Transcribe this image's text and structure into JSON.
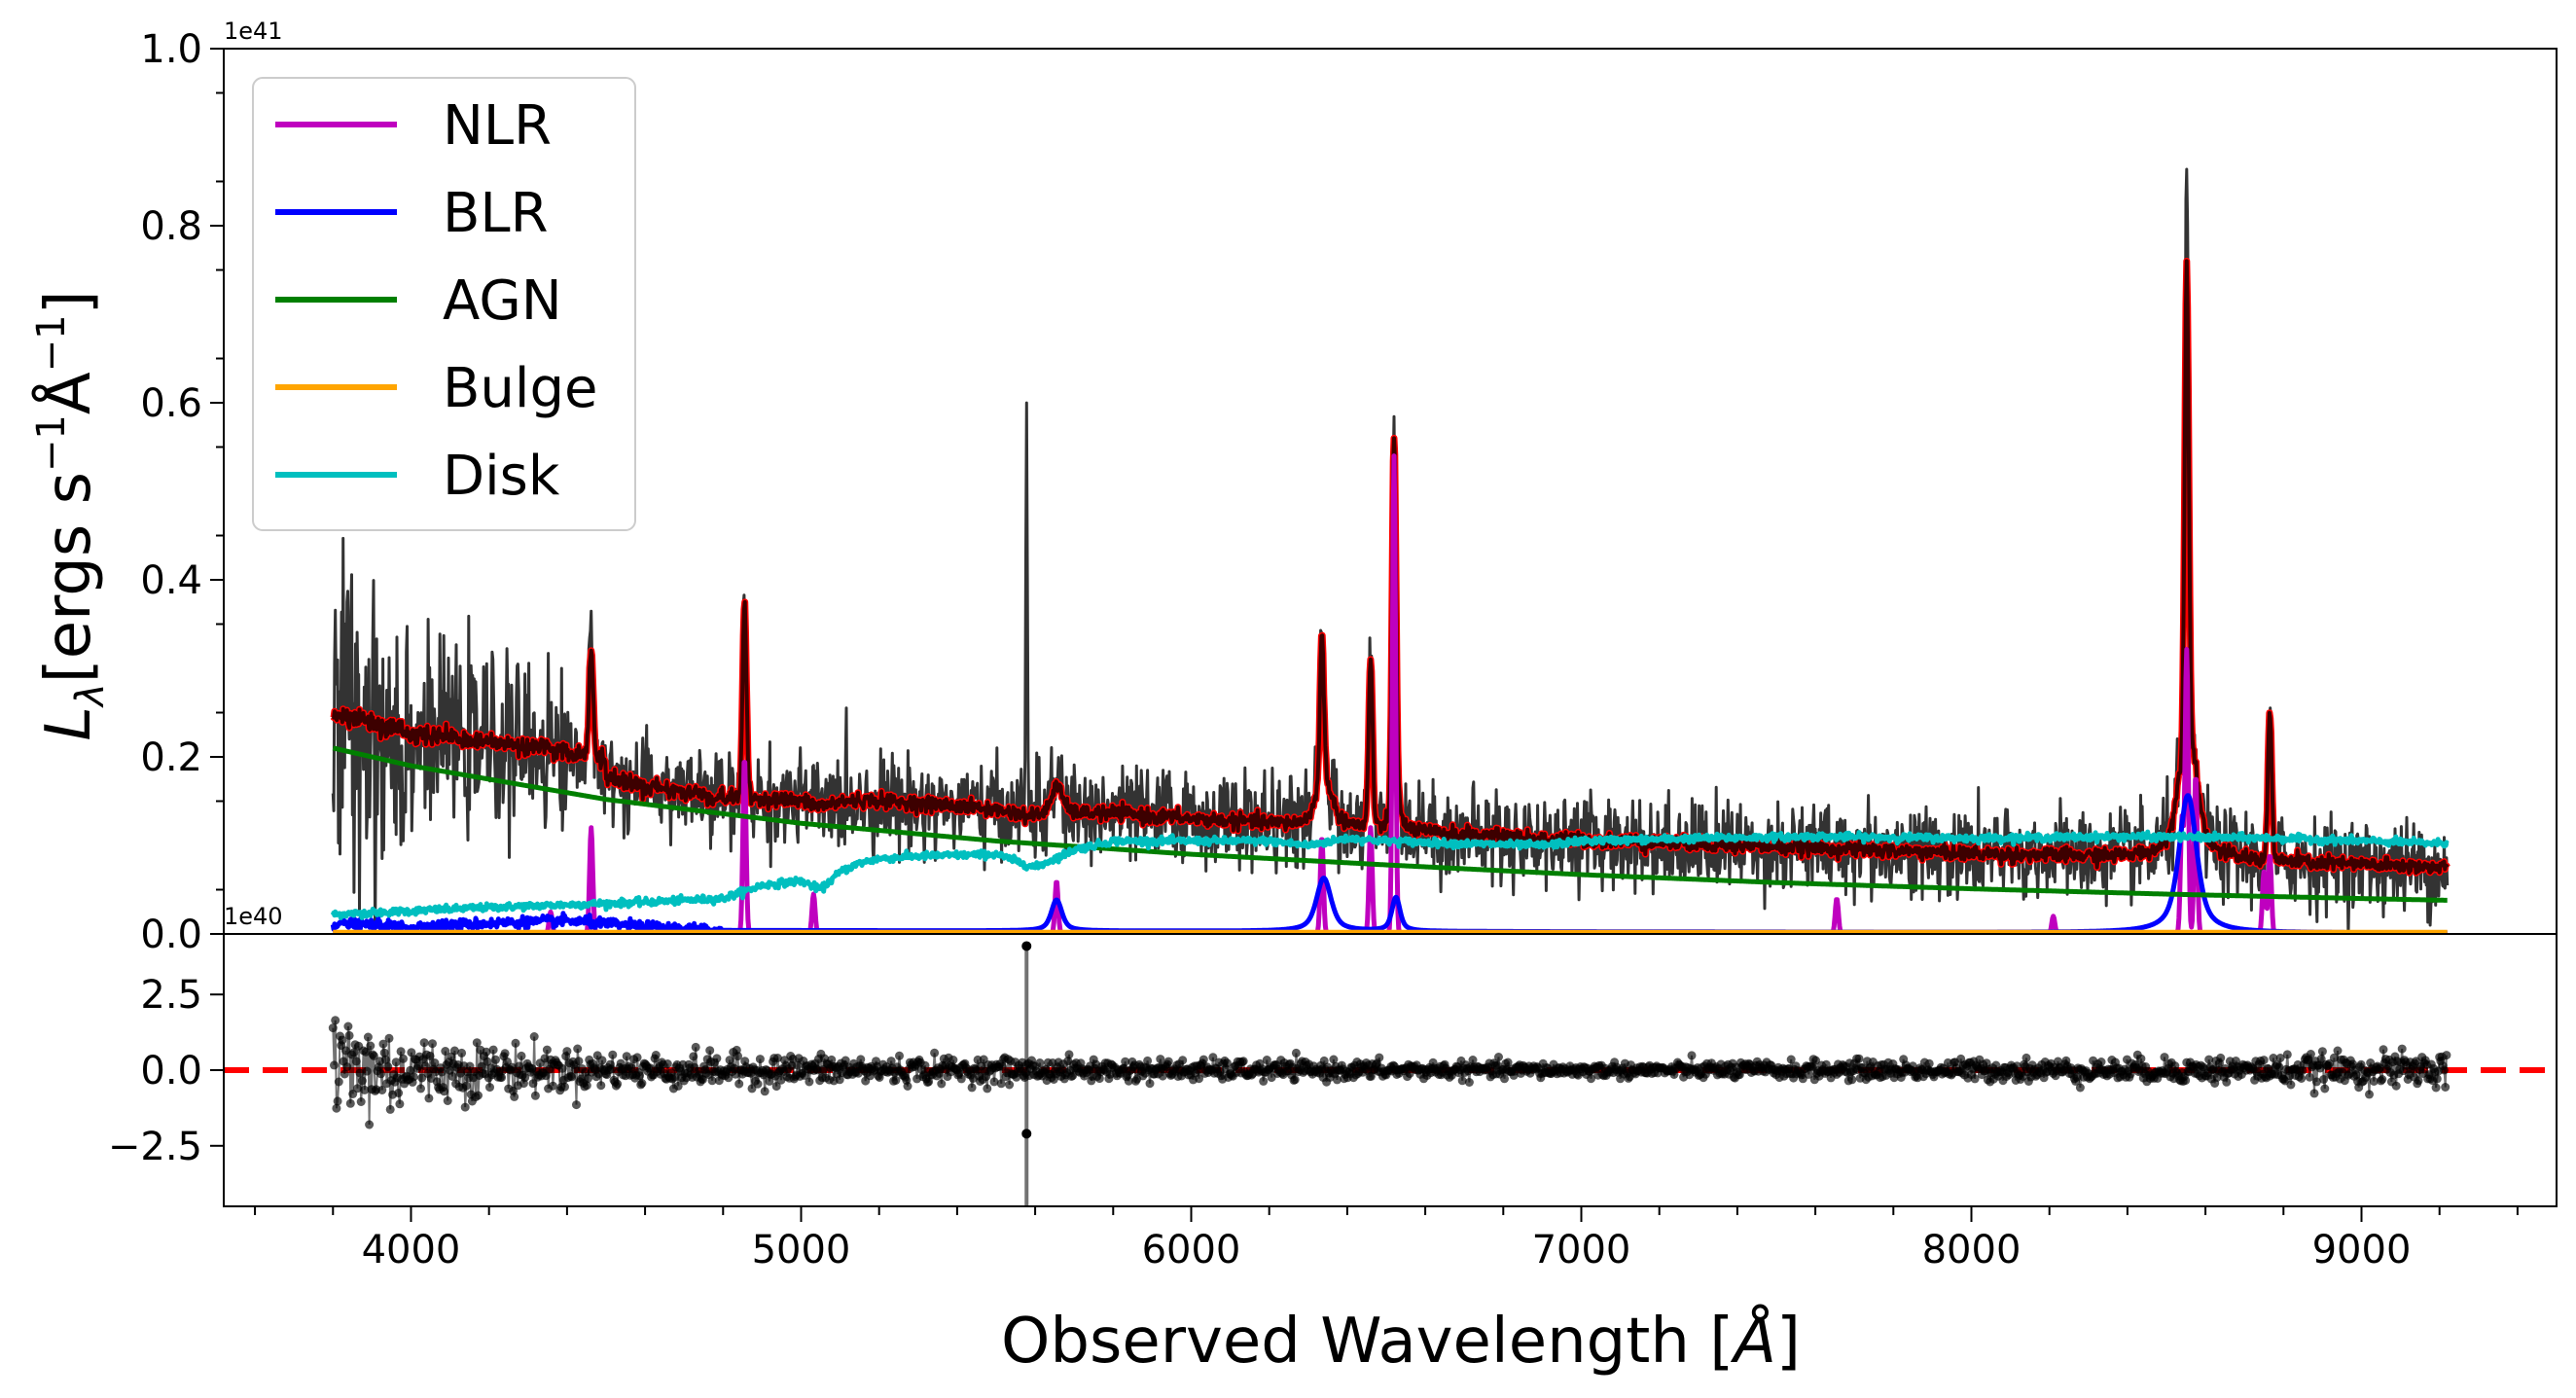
{
  "chart_data": [
    {
      "type": "line",
      "panel": "main",
      "ylabel": "L_λ[ergs s⁻¹Å⁻¹]",
      "ylabel_parts": [
        "L",
        "λ",
        "[ergs s",
        "−1",
        "Å",
        "−1",
        "]"
      ],
      "y_offset_label": "1e41",
      "ylim": [
        0,
        1.0
      ],
      "yticks": [
        0.0,
        0.2,
        0.4,
        0.6,
        0.8,
        1.0
      ],
      "ytick_labels": [
        "0.0",
        "0.2",
        "0.4",
        "0.6",
        "0.8",
        "1.0"
      ],
      "xlim": [
        3520,
        9500
      ],
      "legend": {
        "placement": "top-left",
        "entries": [
          {
            "name": "NLR",
            "color": "#bf00bf"
          },
          {
            "name": "BLR",
            "color": "#0000ff"
          },
          {
            "name": "AGN",
            "color": "#007f00"
          },
          {
            "name": "Bulge",
            "color": "#ffa500"
          },
          {
            "name": "Disk",
            "color": "#00bfbf"
          }
        ]
      },
      "colors": {
        "data": "#333333",
        "model": "#ff0000",
        "model_dark": "#3d0000"
      },
      "series": [
        {
          "name": "AGN",
          "color": "#007f00",
          "x": [
            3800,
            4000,
            4500,
            5000,
            5500,
            6000,
            6500,
            7000,
            7500,
            8000,
            8500,
            9000,
            9220
          ],
          "y": [
            0.21,
            0.19,
            0.152,
            0.125,
            0.105,
            0.09,
            0.078,
            0.067,
            0.058,
            0.051,
            0.045,
            0.04,
            0.038
          ]
        },
        {
          "name": "Disk",
          "color": "#00bfbf",
          "x": [
            3800,
            4000,
            4200,
            4400,
            4600,
            4800,
            4900,
            5000,
            5050,
            5100,
            5150,
            5200,
            5300,
            5500,
            5600,
            5700,
            5800,
            6000,
            6200,
            6300,
            6400,
            6500,
            6700,
            6900,
            7000,
            7300,
            7600,
            8000,
            8400,
            8800,
            9220
          ],
          "y": [
            0.022,
            0.026,
            0.03,
            0.033,
            0.036,
            0.04,
            0.055,
            0.06,
            0.05,
            0.07,
            0.08,
            0.085,
            0.088,
            0.09,
            0.075,
            0.095,
            0.105,
            0.105,
            0.105,
            0.1,
            0.108,
            0.105,
            0.102,
            0.1,
            0.105,
            0.108,
            0.11,
            0.108,
            0.11,
            0.108,
            0.102
          ]
        },
        {
          "name": "Bulge",
          "color": "#ffa500",
          "x": [
            3800,
            9220
          ],
          "y": [
            0.002,
            0.002
          ]
        },
        {
          "name": "BLR",
          "color": "#0000ff",
          "lines": [
            {
              "center": 5655,
              "amp": 0.035,
              "width": 18
            },
            {
              "center": 6340,
              "amp": 0.06,
              "width": 25
            },
            {
              "center": 6525,
              "amp": 0.038,
              "width": 14
            },
            {
              "center": 8555,
              "amp": 0.155,
              "width": 30
            }
          ],
          "continuum_x": [
            3800,
            4000,
            4200,
            4400,
            4600,
            4800,
            9220
          ],
          "continuum_y": [
            0.012,
            0.008,
            0.012,
            0.015,
            0.008,
            0.004,
            0.001
          ]
        },
        {
          "name": "NLR",
          "color": "#bf00bf",
          "lines": [
            {
              "center": 4358,
              "amp": 0.025
            },
            {
              "center": 4462,
              "amp": 0.12
            },
            {
              "center": 4855,
              "amp": 0.2
            },
            {
              "center": 5032,
              "amp": 0.045
            },
            {
              "center": 5655,
              "amp": 0.06
            },
            {
              "center": 6335,
              "amp": 0.11
            },
            {
              "center": 6460,
              "amp": 0.12
            },
            {
              "center": 6520,
              "amp": 0.54
            },
            {
              "center": 7655,
              "amp": 0.04
            },
            {
              "center": 8210,
              "amp": 0.02
            },
            {
              "center": 8540,
              "amp": 0.13
            },
            {
              "center": 8552,
              "amp": 0.32
            },
            {
              "center": 8575,
              "amp": 0.18
            },
            {
              "center": 8750,
              "amp": 0.07
            },
            {
              "center": 8765,
              "amp": 0.09
            }
          ]
        },
        {
          "name": "Model",
          "color": "#ff0000",
          "x_range": [
            3800,
            9220
          ],
          "peaks": [
            {
              "center": 4462,
              "y": 0.32
            },
            {
              "center": 4855,
              "y": 0.375
            },
            {
              "center": 6335,
              "y": 0.34
            },
            {
              "center": 6460,
              "y": 0.31
            },
            {
              "center": 6520,
              "y": 0.56
            },
            {
              "center": 8552,
              "y": 0.76
            },
            {
              "center": 8765,
              "y": 0.25
            }
          ]
        },
        {
          "name": "Data",
          "color": "#333333",
          "x_range": [
            3800,
            9220
          ],
          "spikes": [
            {
              "center": 5578,
              "y": 0.6
            },
            {
              "center": 8552,
              "y": 0.84
            }
          ]
        }
      ]
    },
    {
      "type": "scatter",
      "panel": "residual",
      "y_offset_label": "1e40",
      "ylim": [
        -4.5,
        4.5
      ],
      "yticks": [
        -2.5,
        0.0,
        2.5
      ],
      "ytick_labels": [
        "−2.5",
        "0.0",
        "2.5"
      ],
      "xlim": [
        3520,
        9500
      ],
      "xticks": [
        4000,
        5000,
        6000,
        7000,
        8000,
        9000
      ],
      "xtick_labels": [
        "4000",
        "5000",
        "6000",
        "7000",
        "8000",
        "9000"
      ],
      "xlabel": "Observed Wavelength [Å]",
      "xlabel_parts": [
        "Observed Wavelength [",
        "Å",
        "]"
      ],
      "zero_line": {
        "y": 0.0,
        "color": "#ff0000",
        "style": "dashed"
      },
      "x_range": [
        3800,
        9220
      ],
      "spike": {
        "x": 5578,
        "ymin": -2.1,
        "ymax": 4.1
      },
      "noise_envelope": [
        {
          "x": 3800,
          "std": 1.3
        },
        {
          "x": 4000,
          "std": 0.55
        },
        {
          "x": 4500,
          "std": 0.3
        },
        {
          "x": 5500,
          "std": 0.2
        },
        {
          "x": 7000,
          "std": 0.12
        },
        {
          "x": 8500,
          "std": 0.2
        },
        {
          "x": 9220,
          "std": 0.3
        }
      ]
    }
  ]
}
